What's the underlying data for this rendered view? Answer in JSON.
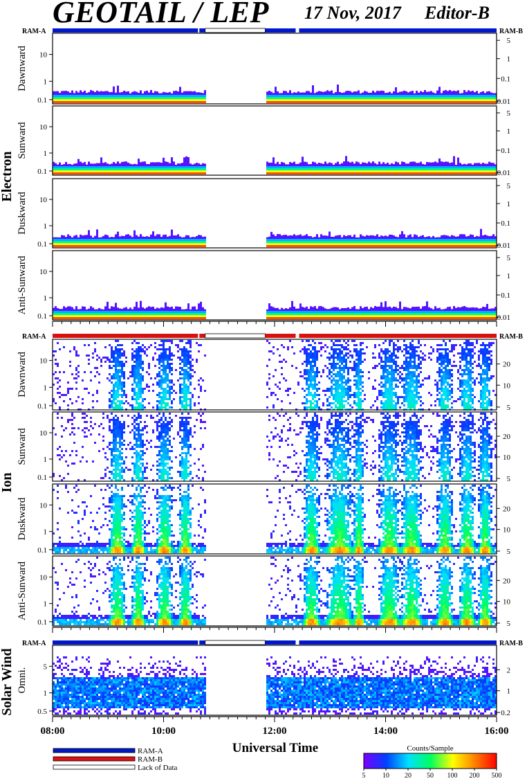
{
  "header": {
    "title": "GEOTAIL / LEP",
    "date": "17 Nov, 2017",
    "editor": "Editor-B"
  },
  "chart_data": {
    "type": "heatmap",
    "xlabel": "Universal Time",
    "x_tick_labels": [
      "08:00",
      "10:00",
      "12:00",
      "14:00",
      "16:00"
    ],
    "x_range_hours": [
      8,
      16
    ],
    "data_gap_hours": [
      10.75,
      11.83
    ],
    "ram_labels": {
      "left": "RAM-A",
      "right": "RAM-B"
    },
    "groups": [
      {
        "name": "Electron",
        "panels": [
          {
            "name": "Dawnward",
            "y_ticks": [
              "10",
              "1",
              "0.1"
            ],
            "y2_ticks": [
              "5",
              "1",
              "0.1",
              "0.01"
            ],
            "profile": "electron"
          },
          {
            "name": "Sunward",
            "y_ticks": [
              "10",
              "1",
              "0.1"
            ],
            "y2_ticks": [
              "5",
              "1",
              "0.1",
              "0.01"
            ],
            "profile": "electron"
          },
          {
            "name": "Duskward",
            "y_ticks": [
              "10",
              "1",
              "0.1"
            ],
            "y2_ticks": [
              "5",
              "1",
              "0.1",
              "0.01"
            ],
            "profile": "electron"
          },
          {
            "name": "Anti-Sunward",
            "y_ticks": [
              "10",
              "1",
              "0.1"
            ],
            "y2_ticks": [
              "5",
              "1",
              "0.1",
              "0.01"
            ],
            "profile": "electron"
          }
        ]
      },
      {
        "name": "Ion",
        "panels": [
          {
            "name": "Dawnward",
            "y_ticks": [
              "10",
              "1",
              "0.1"
            ],
            "y2_ticks": [
              "20",
              "10",
              "5"
            ],
            "profile": "ion_weak"
          },
          {
            "name": "Sunward",
            "y_ticks": [
              "10",
              "1",
              "0.1"
            ],
            "y2_ticks": [
              "20",
              "10",
              "5"
            ],
            "profile": "ion_weak"
          },
          {
            "name": "Duskward",
            "y_ticks": [
              "10",
              "1",
              "0.1"
            ],
            "y2_ticks": [
              "20",
              "10",
              "5"
            ],
            "profile": "ion_strong"
          },
          {
            "name": "Anti-Sunward",
            "y_ticks": [
              "10",
              "1",
              "0.1"
            ],
            "y2_ticks": [
              "20",
              "10",
              "5"
            ],
            "profile": "ion_strong"
          }
        ]
      },
      {
        "name": "Solar Wind",
        "panels": [
          {
            "name": "Omni.",
            "y_ticks": [
              "5",
              "1",
              "0.5"
            ],
            "y2_ticks": [
              "2",
              "1",
              "0.2"
            ],
            "profile": "solar"
          }
        ]
      }
    ],
    "legend": {
      "items": [
        {
          "label": "RAM-A",
          "color": "#0018c8"
        },
        {
          "label": "RAM-B",
          "color": "#e01010"
        },
        {
          "label": "Lack of Data",
          "color": "#ffffff"
        }
      ]
    },
    "colorbar": {
      "title": "Counts/Sample",
      "ticks": [
        "5",
        "10",
        "20",
        "50",
        "100",
        "200",
        "500"
      ],
      "colors": [
        "#7a00ff",
        "#0040ff",
        "#00e0ff",
        "#00ff60",
        "#ffff00",
        "#ff8000",
        "#ff0000"
      ]
    }
  }
}
